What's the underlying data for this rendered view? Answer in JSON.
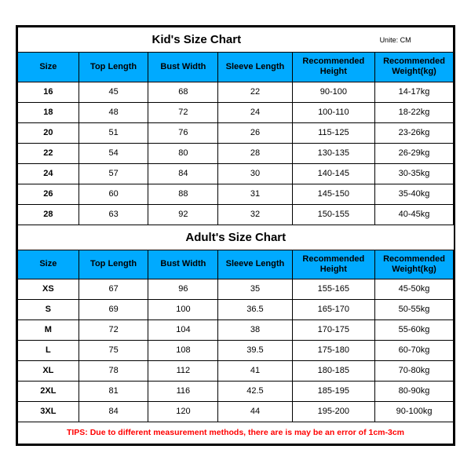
{
  "kids": {
    "title": "Kid's Size Chart",
    "unit": "Unite: CM",
    "columns": [
      "Size",
      "Top Length",
      "Bust Width",
      "Sleeve Length",
      "Recommended Height",
      "Recommended Weight(kg)"
    ],
    "rows": [
      [
        "16",
        "45",
        "68",
        "22",
        "90-100",
        "14-17kg"
      ],
      [
        "18",
        "48",
        "72",
        "24",
        "100-110",
        "18-22kg"
      ],
      [
        "20",
        "51",
        "76",
        "26",
        "115-125",
        "23-26kg"
      ],
      [
        "22",
        "54",
        "80",
        "28",
        "130-135",
        "26-29kg"
      ],
      [
        "24",
        "57",
        "84",
        "30",
        "140-145",
        "30-35kg"
      ],
      [
        "26",
        "60",
        "88",
        "31",
        "145-150",
        "35-40kg"
      ],
      [
        "28",
        "63",
        "92",
        "32",
        "150-155",
        "40-45kg"
      ]
    ]
  },
  "adults": {
    "title": "Adult's Size Chart",
    "columns": [
      "Size",
      "Top Length",
      "Bust Width",
      "Sleeve Length",
      "Recommended Height",
      "Recommended Weight(kg)"
    ],
    "rows": [
      [
        "XS",
        "67",
        "96",
        "35",
        "155-165",
        "45-50kg"
      ],
      [
        "S",
        "69",
        "100",
        "36.5",
        "165-170",
        "50-55kg"
      ],
      [
        "M",
        "72",
        "104",
        "38",
        "170-175",
        "55-60kg"
      ],
      [
        "L",
        "75",
        "108",
        "39.5",
        "175-180",
        "60-70kg"
      ],
      [
        "XL",
        "78",
        "112",
        "41",
        "180-185",
        "70-80kg"
      ],
      [
        "2XL",
        "81",
        "116",
        "42.5",
        "185-195",
        "80-90kg"
      ],
      [
        "3XL",
        "84",
        "120",
        "44",
        "195-200",
        "90-100kg"
      ]
    ]
  },
  "tips": "TIPS: Due to different measurement methods, there are is may be an error of 1cm-3cm",
  "styling": {
    "header_bg": "#00aaff",
    "border_color": "#000000",
    "tips_color": "#ff0000",
    "background": "#ffffff",
    "col_widths_pct": [
      14,
      16,
      16,
      17,
      19,
      18
    ]
  }
}
